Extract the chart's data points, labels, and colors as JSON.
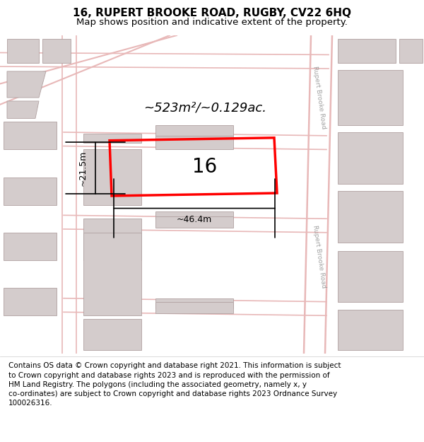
{
  "title": "16, RUPERT BROOKE ROAD, RUGBY, CV22 6HQ",
  "subtitle": "Map shows position and indicative extent of the property.",
  "area_label": "~523m²/~0.129ac.",
  "plot_number": "16",
  "width_label": "~46.4m",
  "height_label": "~21.5m",
  "road_label": "Rupert Brooke Road",
  "footer_lines": "Contains OS data © Crown copyright and database right 2021. This information is subject\nto Crown copyright and database rights 2023 and is reproduced with the permission of\nHM Land Registry. The polygons (including the associated geometry, namely x, y\nco-ordinates) are subject to Crown copyright and database rights 2023 Ordnance Survey\n100026316.",
  "map_bg": "#f0eeee",
  "plot_color": "#ff0000",
  "building_color": "#d4cccc",
  "building_border": "#b0a0a0",
  "road_line_color": "#e8b8b8",
  "title_fontsize": 11,
  "subtitle_fontsize": 9.5,
  "footer_fontsize": 7.5
}
